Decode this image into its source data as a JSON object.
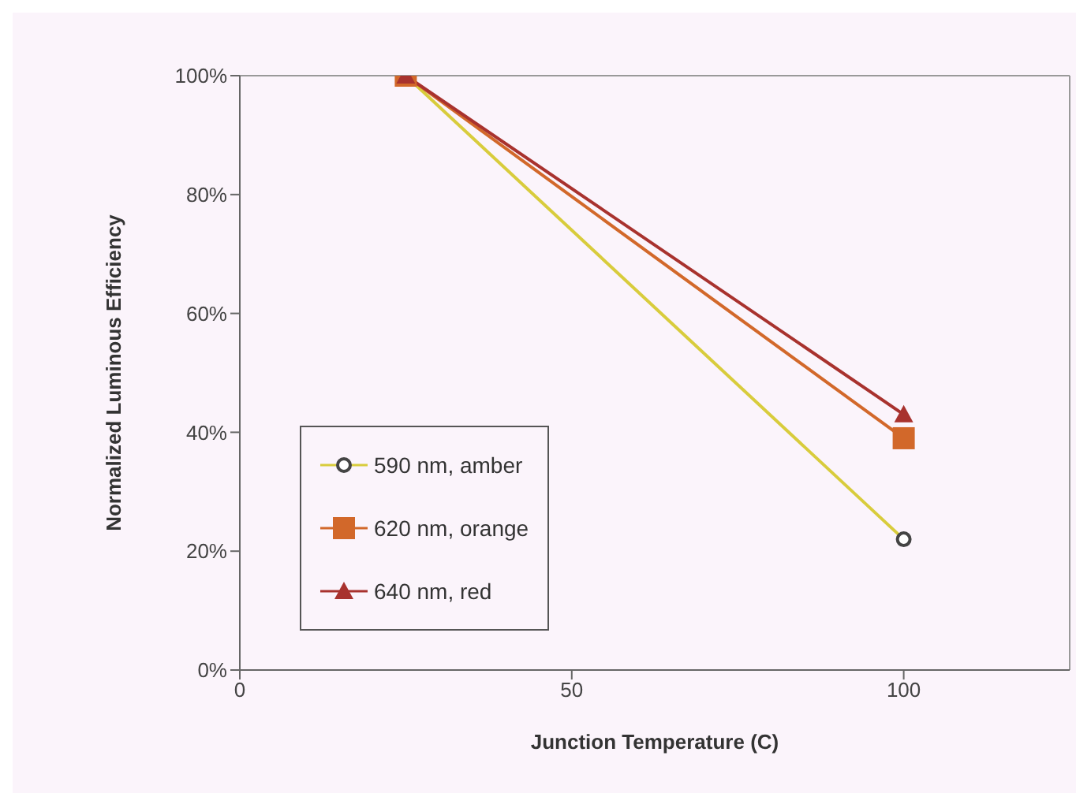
{
  "chart_data": {
    "type": "line",
    "xlabel": "Junction Temperature (C)",
    "ylabel": "Normalized Luminous Efficiency",
    "x": [
      25,
      100
    ],
    "series": [
      {
        "name": "590 nm, amber",
        "color": "#d8cc3c",
        "values": [
          100,
          22
        ],
        "marker": "circle"
      },
      {
        "name": "620 nm, orange",
        "color": "#d2682a",
        "values": [
          100,
          39
        ],
        "marker": "square"
      },
      {
        "name": "640 nm, red",
        "color": "#a8322e",
        "values": [
          100,
          43
        ],
        "marker": "triangle"
      }
    ],
    "xlim": [
      0,
      125
    ],
    "xticks": [
      0,
      50,
      100
    ],
    "ylim": [
      0,
      100
    ],
    "yticks": [
      {
        "value": 0,
        "label": "0%"
      },
      {
        "value": 20,
        "label": "20%"
      },
      {
        "value": 40,
        "label": "40%"
      },
      {
        "value": 60,
        "label": "60%"
      },
      {
        "value": 80,
        "label": "80%"
      },
      {
        "value": 100,
        "label": "100%"
      }
    ],
    "grid": false,
    "legend": "bottom left"
  }
}
